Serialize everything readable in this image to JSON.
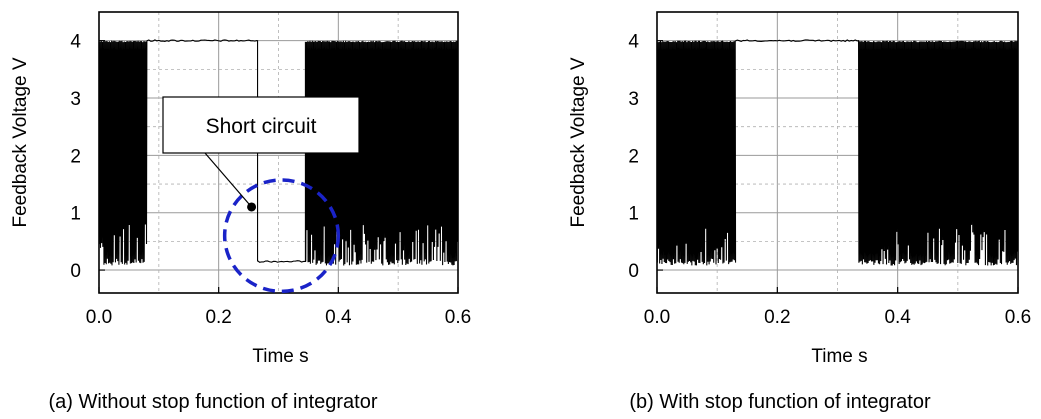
{
  "chart_data": [
    {
      "type": "line",
      "title": "",
      "caption": "(a) Without stop function of integrator",
      "xlabel": "Time s",
      "ylabel": "Feedback Voltage V",
      "xlim": [
        0.0,
        0.6
      ],
      "ylim": [
        -0.4,
        4.5
      ],
      "x_ticks": [
        "0.0",
        "0.2",
        "0.4",
        "0.6"
      ],
      "y_ticks": [
        "0",
        "1",
        "2",
        "3",
        "4"
      ],
      "grid": true,
      "signal_description": "PWM-like switching between ~0.08 V and 4 V",
      "segments": [
        {
          "x_start": 0.0,
          "x_end": 0.08,
          "mode": "switching",
          "low": 0.08,
          "high": 4.0
        },
        {
          "x_start": 0.08,
          "x_end": 0.265,
          "mode": "steady",
          "value": 4.0
        },
        {
          "x_start": 0.265,
          "x_end": 0.345,
          "mode": "steady",
          "value": 0.15
        },
        {
          "x_start": 0.345,
          "x_end": 0.6,
          "mode": "switching",
          "low": 0.08,
          "high": 4.0
        }
      ],
      "annotation": {
        "text": "Short circuit",
        "point": [
          0.255,
          1.1
        ],
        "circle_center": [
          0.305,
          0.6
        ],
        "circle_radius_x": 0.095
      }
    },
    {
      "type": "line",
      "title": "",
      "caption": "(b) With stop function of integrator",
      "xlabel": "Time s",
      "ylabel": "Feedback Voltage V",
      "xlim": [
        0.0,
        0.6
      ],
      "ylim": [
        -0.4,
        4.5
      ],
      "x_ticks": [
        "0.0",
        "0.2",
        "0.4",
        "0.6"
      ],
      "y_ticks": [
        "0",
        "1",
        "2",
        "3",
        "4"
      ],
      "grid": true,
      "signal_description": "PWM-like switching between ~0.08 V and 4 V",
      "segments": [
        {
          "x_start": 0.0,
          "x_end": 0.13,
          "mode": "switching",
          "low": 0.08,
          "high": 4.0
        },
        {
          "x_start": 0.13,
          "x_end": 0.335,
          "mode": "steady",
          "value": 4.0
        },
        {
          "x_start": 0.335,
          "x_end": 0.6,
          "mode": "switching",
          "low": 0.08,
          "high": 4.0
        }
      ]
    }
  ]
}
